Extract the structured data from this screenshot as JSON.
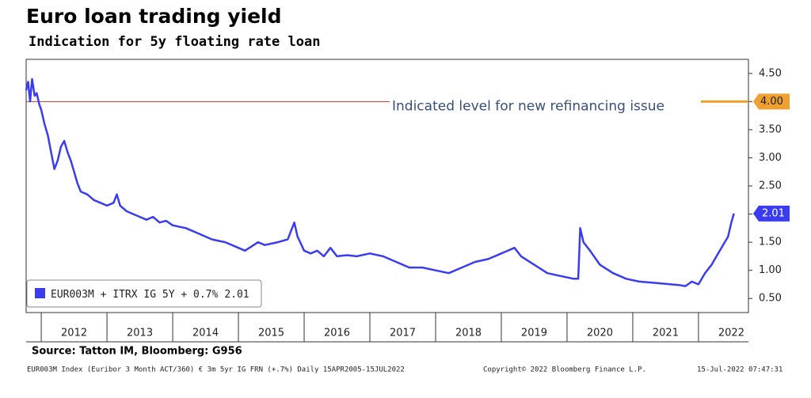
{
  "chart_data": {
    "type": "line",
    "title": "Euro loan trading yield",
    "subtitle": "Indication for 5y floating rate loan",
    "source": "Source: Tatton IM, Bloomberg: G956",
    "footnote": "EUR003M Index (Euribor 3 Month ACT/360) € 3m 5yr IG FRN (+.7%)  Daily 15APR2005-15JUL2022",
    "copyright": "Copyright© 2022 Bloomberg Finance L.P.",
    "timestamp": "15-Jul-2022 07:47:31",
    "x": [
      2011.77,
      2011.8,
      2011.83,
      2011.86,
      2011.9,
      2011.93,
      2011.97,
      2012.0,
      2012.05,
      2012.1,
      2012.15,
      2012.2,
      2012.25,
      2012.3,
      2012.35,
      2012.4,
      2012.45,
      2012.5,
      2012.55,
      2012.6,
      2012.7,
      2012.8,
      2012.9,
      2013.0,
      2013.1,
      2013.15,
      2013.2,
      2013.3,
      2013.4,
      2013.5,
      2013.6,
      2013.7,
      2013.8,
      2013.9,
      2014.0,
      2014.2,
      2014.4,
      2014.6,
      2014.8,
      2015.0,
      2015.1,
      2015.3,
      2015.4,
      2015.6,
      2015.75,
      2015.85,
      2015.9,
      2016.0,
      2016.1,
      2016.2,
      2016.3,
      2016.4,
      2016.5,
      2016.65,
      2016.8,
      2017.0,
      2017.2,
      2017.4,
      2017.6,
      2017.8,
      2018.0,
      2018.2,
      2018.4,
      2018.6,
      2018.8,
      2019.0,
      2019.2,
      2019.3,
      2019.5,
      2019.7,
      2019.9,
      2020.1,
      2020.17,
      2020.2,
      2020.25,
      2020.35,
      2020.5,
      2020.7,
      2020.9,
      2021.1,
      2021.3,
      2021.5,
      2021.7,
      2021.8,
      2021.9,
      2022.0,
      2022.1,
      2022.2,
      2022.3,
      2022.4,
      2022.45,
      2022.5,
      2022.54
    ],
    "series": [
      {
        "name": "EUR003M + ITRX IG 5Y + 0.7%",
        "color": "#3b3bf0",
        "values": [
          4.2,
          4.35,
          4.0,
          4.4,
          4.1,
          4.15,
          3.95,
          3.85,
          3.6,
          3.4,
          3.1,
          2.8,
          2.95,
          3.2,
          3.3,
          3.1,
          2.95,
          2.75,
          2.55,
          2.4,
          2.35,
          2.25,
          2.2,
          2.15,
          2.2,
          2.35,
          2.15,
          2.05,
          2.0,
          1.95,
          1.9,
          1.95,
          1.85,
          1.88,
          1.8,
          1.75,
          1.65,
          1.55,
          1.5,
          1.4,
          1.35,
          1.5,
          1.45,
          1.5,
          1.55,
          1.85,
          1.6,
          1.35,
          1.3,
          1.35,
          1.25,
          1.4,
          1.25,
          1.27,
          1.25,
          1.3,
          1.25,
          1.15,
          1.05,
          1.05,
          1.0,
          0.95,
          1.05,
          1.15,
          1.2,
          1.3,
          1.4,
          1.25,
          1.1,
          0.95,
          0.9,
          0.85,
          0.85,
          1.75,
          1.5,
          1.35,
          1.1,
          0.95,
          0.85,
          0.8,
          0.78,
          0.76,
          0.74,
          0.72,
          0.8,
          0.75,
          0.95,
          1.1,
          1.3,
          1.5,
          1.6,
          1.85,
          2.01
        ]
      }
    ],
    "reference": {
      "value": 4,
      "value_label": "4.00",
      "text": "Indicated level for new refinancing issue"
    },
    "xlim": [
      2011.77,
      2022.76
    ],
    "xticks": [
      2012,
      2013,
      2014,
      2015,
      2016,
      2017,
      2018,
      2019,
      2020,
      2021,
      2022
    ],
    "ylim": [
      0.25,
      4.75
    ],
    "yticks": [
      {
        "value": 0.5,
        "label": "0.50"
      },
      {
        "value": 1,
        "label": "1.00"
      },
      {
        "value": 1.5,
        "label": "1.50"
      },
      {
        "value": 2,
        "label": "2.00"
      },
      {
        "value": 2.5,
        "label": "2.50"
      },
      {
        "value": 3,
        "label": "3.00"
      },
      {
        "value": 3.5,
        "label": "3.50"
      },
      {
        "value": 4,
        "label": "4.00"
      },
      {
        "value": 4.5,
        "label": "4.50"
      }
    ]
  }
}
